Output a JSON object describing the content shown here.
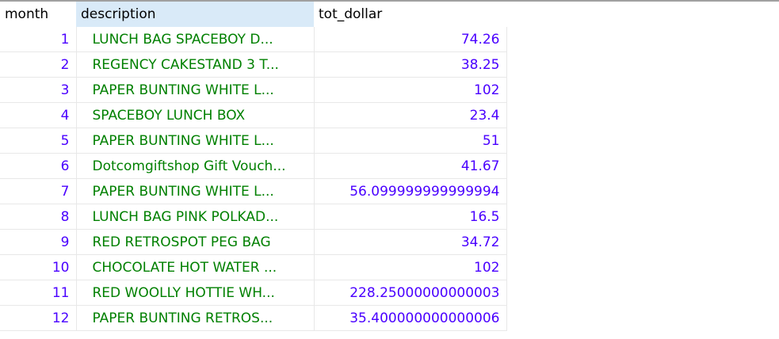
{
  "grid": {
    "columns": [
      "month",
      "description",
      "tot_dollar"
    ],
    "selected_column": "description",
    "colors": {
      "number": "#4a00ff",
      "text": "#008000",
      "header_selected": "#d9eaf8"
    },
    "rows": [
      {
        "month": "1",
        "description": "LUNCH BAG SPACEBOY D...",
        "tot_dollar": "74.26"
      },
      {
        "month": "2",
        "description": "REGENCY CAKESTAND 3 T...",
        "tot_dollar": "38.25"
      },
      {
        "month": "3",
        "description": "PAPER BUNTING WHITE L...",
        "tot_dollar": "102"
      },
      {
        "month": "4",
        "description": "SPACEBOY LUNCH BOX",
        "tot_dollar": "23.4"
      },
      {
        "month": "5",
        "description": "PAPER BUNTING WHITE L...",
        "tot_dollar": "51"
      },
      {
        "month": "6",
        "description": "Dotcomgiftshop Gift Vouch...",
        "tot_dollar": "41.67"
      },
      {
        "month": "7",
        "description": "PAPER BUNTING WHITE L...",
        "tot_dollar": "56.099999999999994"
      },
      {
        "month": "8",
        "description": "LUNCH BAG PINK POLKAD...",
        "tot_dollar": "16.5"
      },
      {
        "month": "9",
        "description": "RED RETROSPOT PEG BAG",
        "tot_dollar": "34.72"
      },
      {
        "month": "10",
        "description": "CHOCOLATE HOT WATER ...",
        "tot_dollar": "102"
      },
      {
        "month": "11",
        "description": "RED WOOLLY HOTTIE WH...",
        "tot_dollar": "228.25000000000003"
      },
      {
        "month": "12",
        "description": "PAPER BUNTING RETROS...",
        "tot_dollar": "35.400000000000006"
      }
    ]
  }
}
